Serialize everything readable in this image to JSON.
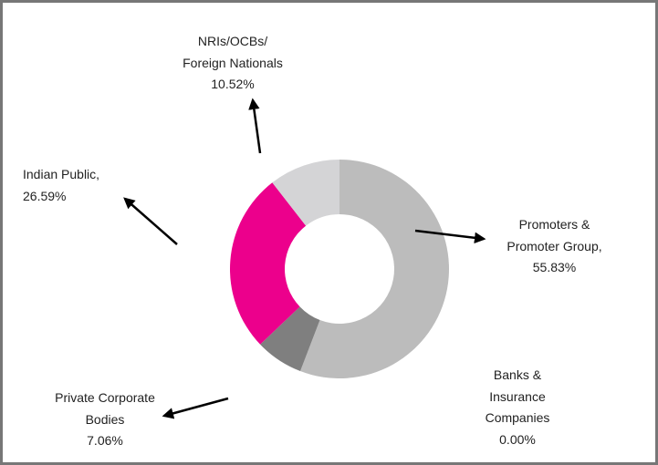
{
  "chart_data": {
    "type": "donut",
    "categories": [
      "Promoters & Promoter Group,",
      "Banks & Insurance Companies",
      "Private Corporate Bodies",
      "Indian Public,",
      "NRIs/OCBs/ Foreign Nationals"
    ],
    "values": [
      55.83,
      0,
      7.06,
      26.59,
      10.52
    ],
    "value_labels": [
      "55.83%",
      "0.00%",
      "7.06%",
      "26.59%",
      "10.52%"
    ],
    "colors": [
      "#bcbcbc",
      "#a6a6a6",
      "#7f7f7f",
      "#ec008c",
      "#d4d4d6"
    ]
  }
}
